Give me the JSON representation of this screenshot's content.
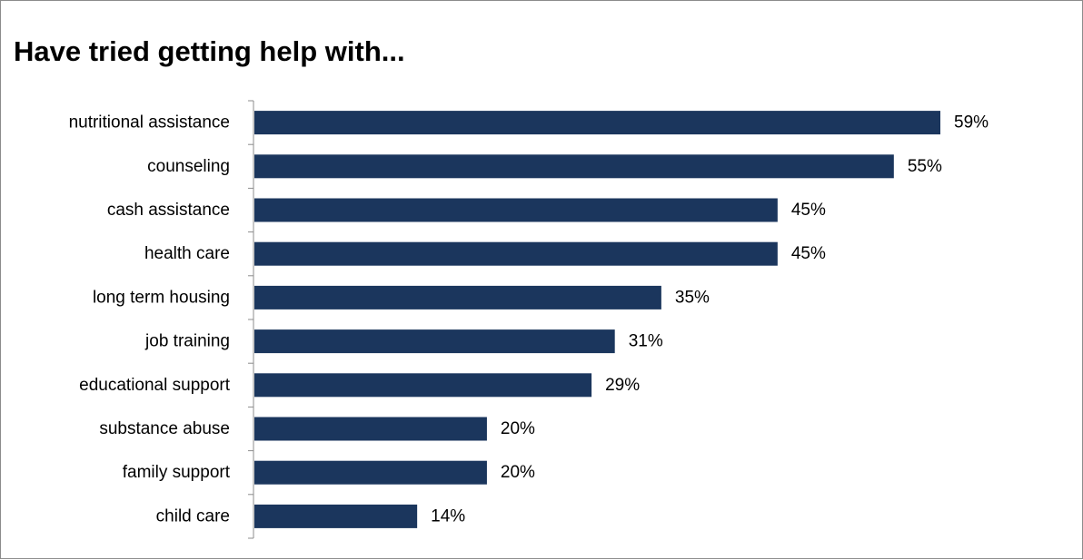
{
  "chart_data": {
    "type": "bar",
    "orientation": "horizontal",
    "title": "Have tried getting help with...",
    "xlabel": "",
    "ylabel": "",
    "categories": [
      "nutritional assistance",
      "counseling",
      "cash assistance",
      "health care",
      "long term housing",
      "job training",
      "educational support",
      "substance abuse",
      "family support",
      "child care"
    ],
    "values": [
      59,
      55,
      45,
      45,
      35,
      31,
      29,
      20,
      20,
      14
    ],
    "value_labels": [
      "59%",
      "55%",
      "45%",
      "45%",
      "35%",
      "31%",
      "29%",
      "20%",
      "20%",
      "14%"
    ],
    "value_unit": "%",
    "xlim": [
      0,
      60
    ],
    "grid": false,
    "legend": "none",
    "bar_color": "#1b365d"
  }
}
